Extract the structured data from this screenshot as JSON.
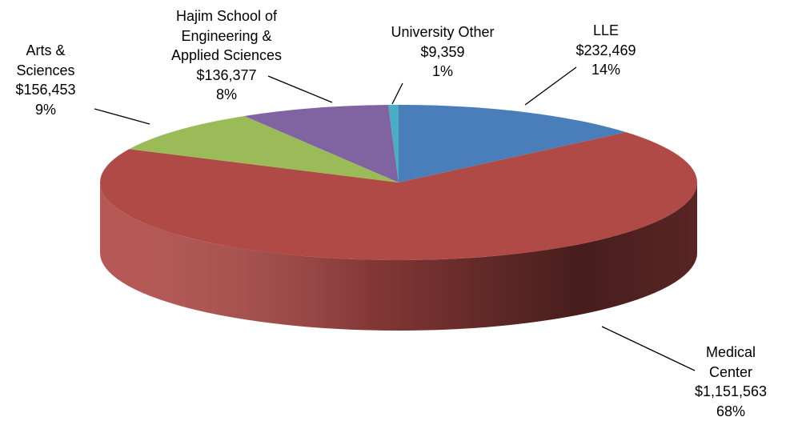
{
  "chart_data": {
    "type": "pie",
    "categories": [
      "LLE",
      "Medical Center",
      "Arts & Sciences",
      "Hajim School of Engineering & Applied Sciences",
      "University Other"
    ],
    "values": [
      232469,
      1151563,
      156453,
      136377,
      9359
    ],
    "value_labels": [
      "$232,469",
      "$1,151,563",
      "$156,453",
      "$136,377",
      "$9,359"
    ],
    "percents": [
      14,
      68,
      9,
      8,
      1
    ],
    "percent_labels": [
      "14%",
      "68%",
      "9%",
      "8%",
      "1%"
    ],
    "colors": [
      "#4a7ebb",
      "#b04a47",
      "#9bbb59",
      "#8064a2",
      "#4bacc6"
    ],
    "start_angle": 0,
    "direction": "clockwise",
    "three_d": true
  }
}
